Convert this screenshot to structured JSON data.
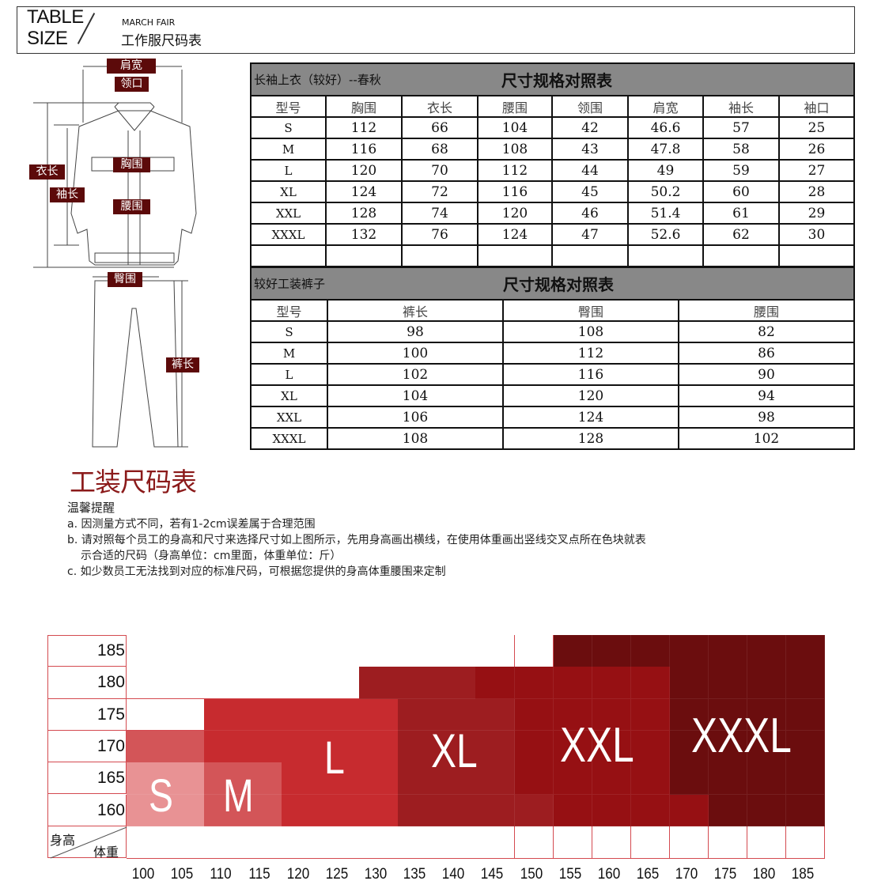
{
  "header": {
    "table": "TABLE",
    "size": "SIZE",
    "brand": "MARCH FAIR",
    "title": "工作服尺码表"
  },
  "diagram_labels": {
    "shoulder": "肩宽",
    "collar": "领口",
    "length": "衣长",
    "sleeve": "袖长",
    "chest": "胸围",
    "waist": "腰围",
    "hip": "臀围",
    "pants_length": "裤长"
  },
  "jacket_table": {
    "title": "长袖上衣（较好）--春秋",
    "heading": "尺寸规格对照表",
    "columns": [
      "型号",
      "胸围",
      "衣长",
      "腰围",
      "领围",
      "肩宽",
      "袖长",
      "袖口"
    ],
    "rows": [
      [
        "S",
        "112",
        "66",
        "104",
        "42",
        "46.6",
        "57",
        "25"
      ],
      [
        "M",
        "116",
        "68",
        "108",
        "43",
        "47.8",
        "58",
        "26"
      ],
      [
        "L",
        "120",
        "70",
        "112",
        "44",
        "49",
        "59",
        "27"
      ],
      [
        "XL",
        "124",
        "72",
        "116",
        "45",
        "50.2",
        "60",
        "28"
      ],
      [
        "XXL",
        "128",
        "74",
        "120",
        "46",
        "51.4",
        "61",
        "29"
      ],
      [
        "XXXL",
        "132",
        "76",
        "124",
        "47",
        "52.6",
        "62",
        "30"
      ],
      [
        "",
        "",
        "",
        "",
        "",
        "",
        "",
        ""
      ]
    ]
  },
  "pants_table": {
    "title": "较好工装裤子",
    "heading": "尺寸规格对照表",
    "columns": [
      "型号",
      "裤长",
      "臀围",
      "腰围"
    ],
    "rows": [
      [
        "S",
        "98",
        "108",
        "82"
      ],
      [
        "M",
        "100",
        "112",
        "86"
      ],
      [
        "L",
        "102",
        "116",
        "90"
      ],
      [
        "XL",
        "104",
        "120",
        "94"
      ],
      [
        "XXL",
        "106",
        "124",
        "98"
      ],
      [
        "XXXL",
        "108",
        "128",
        "102"
      ]
    ]
  },
  "section_title": "工装尺码表",
  "notes": {
    "heading": "温馨提醒",
    "a": "a. 因测量方式不同，若有1-2cm误差属于合理范围",
    "b": "b. 请对照每个员工的身高和尺寸来选择尺寸如上图所示，先用身高画出横线，在使用体重画出竖线交叉点所在色块就表",
    "b2": "示合适的尺码（身高单位：cm里面，体重单位：斤）",
    "c": "c. 如少数员工无法找到对应的标准尺码，可根据您提供的身高体重腰围来定制"
  },
  "size_grid": {
    "corner_height": "身高",
    "corner_weight": "体重",
    "heights": [
      "185",
      "180",
      "175",
      "170",
      "165",
      "160"
    ],
    "weights": [
      "100",
      "105",
      "110",
      "115",
      "120",
      "125",
      "130",
      "135",
      "140",
      "145",
      "150",
      "155",
      "160",
      "165",
      "170",
      "175",
      "180",
      "185"
    ],
    "cells": [
      [
        "",
        "",
        "",
        "",
        "",
        "",
        "",
        "",
        "",
        "",
        "",
        "XXXL",
        "XXXL",
        "XXXL",
        "XXXL",
        "XXXL",
        "XXXL",
        "XXXL"
      ],
      [
        "",
        "",
        "",
        "",
        "",
        "",
        "XL",
        "XL",
        "XL",
        "XXL",
        "XXL",
        "XXL",
        "XXL",
        "XXL",
        "XXXL",
        "XXXL",
        "XXXL",
        "XXXL"
      ],
      [
        "",
        "",
        "L",
        "L",
        "L",
        "L",
        "L",
        "XL",
        "XL",
        "XL",
        "XXL",
        "XXL",
        "XXL",
        "XXL",
        "XXXL",
        "XXXL",
        "XXXL",
        "XXXL"
      ],
      [
        "M",
        "M",
        "L",
        "L",
        "L",
        "L",
        "L",
        "XL",
        "XL",
        "XL",
        "XXL",
        "XXL",
        "XXL",
        "XXL",
        "XXXL",
        "XXXL",
        "XXXL",
        "XXXL"
      ],
      [
        "S",
        "S",
        "M",
        "M",
        "L",
        "L",
        "L",
        "XL",
        "XL",
        "XL",
        "XXL",
        "XXL",
        "XXL",
        "XXL",
        "XXXL",
        "XXXL",
        "XXXL",
        "XXXL"
      ],
      [
        "S",
        "S",
        "M",
        "M",
        "L",
        "L",
        "L",
        "XL",
        "XL",
        "XL",
        "XL",
        "XXL",
        "XXL",
        "XXL",
        "XXL",
        "XXXL",
        "XXXL",
        "XXXL"
      ]
    ],
    "size_labels": [
      "S",
      "M",
      "L",
      "XL",
      "XXL",
      "XXXL"
    ],
    "colors": {
      "S": "#e89294",
      "M": "#d35558",
      "L": "#c72b2f",
      "XL": "#9d1d20",
      "XXL": "#961013",
      "XXXL": "#6b0d0e",
      "grid": "#d44a50",
      "label_bg": "#5c0a0a",
      "title": "#8b1a1a"
    }
  }
}
